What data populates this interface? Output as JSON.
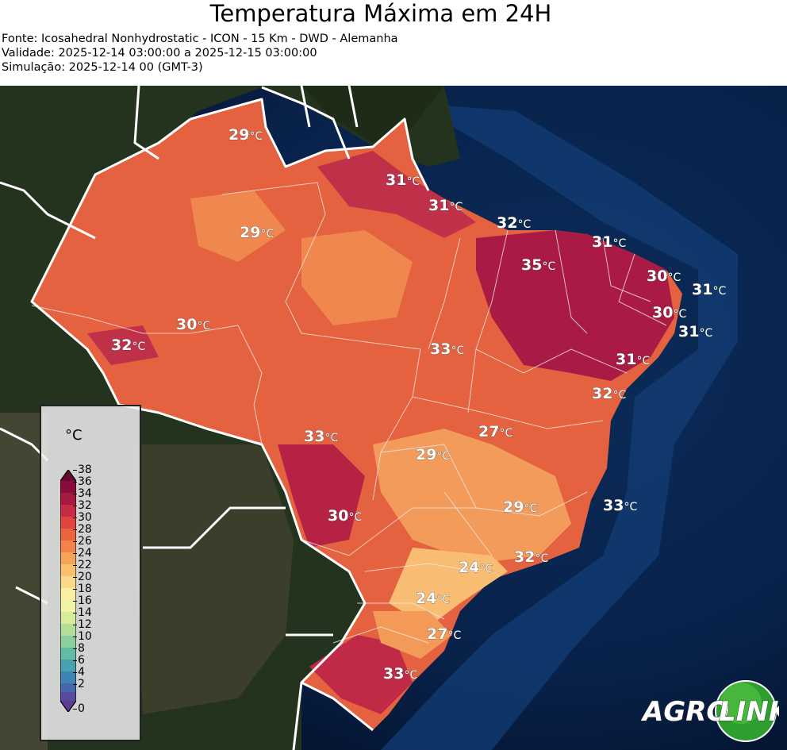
{
  "header": {
    "title": "Temperatura Máxima em 24H",
    "source": "Fonte: Icosahedral Nonhydrostatic - ICON - 15 Km - DWD - Alemanha",
    "validity": "Validade: 2025-12-14 03:00:00 a 2025-12-15 03:00:00",
    "simulation": "Simulação: 2025-12-14 00 (GMT-3)"
  },
  "legend": {
    "unit": "°C",
    "ticks": [
      "38",
      "36",
      "34",
      "32",
      "30",
      "28",
      "26",
      "24",
      "22",
      "20",
      "18",
      "16",
      "14",
      "12",
      "10",
      "8",
      "6",
      "4",
      "2",
      "0"
    ]
  },
  "labels": [
    {
      "value": "29",
      "unit": "°C"
    },
    {
      "value": "31",
      "unit": "°C"
    },
    {
      "value": "31",
      "unit": "°C"
    },
    {
      "value": "32",
      "unit": "°C"
    },
    {
      "value": "29",
      "unit": "°C"
    },
    {
      "value": "35",
      "unit": "°C"
    },
    {
      "value": "31",
      "unit": "°C"
    },
    {
      "value": "30",
      "unit": "°C"
    },
    {
      "value": "31",
      "unit": "°C"
    },
    {
      "value": "30",
      "unit": "°C"
    },
    {
      "value": "31",
      "unit": "°C"
    },
    {
      "value": "30",
      "unit": "°C"
    },
    {
      "value": "32",
      "unit": "°C"
    },
    {
      "value": "33",
      "unit": "°C"
    },
    {
      "value": "31",
      "unit": "°C"
    },
    {
      "value": "32",
      "unit": "°C"
    },
    {
      "value": "33",
      "unit": "°C"
    },
    {
      "value": "27",
      "unit": "°C"
    },
    {
      "value": "29",
      "unit": "°C"
    },
    {
      "value": "29",
      "unit": "°C"
    },
    {
      "value": "33",
      "unit": "°C"
    },
    {
      "value": "30",
      "unit": "°C"
    },
    {
      "value": "32",
      "unit": "°C"
    },
    {
      "value": "24",
      "unit": "°C"
    },
    {
      "value": "24",
      "unit": "°C"
    },
    {
      "value": "27",
      "unit": "°C"
    },
    {
      "value": "33",
      "unit": "°C"
    }
  ],
  "logo": {
    "text_a": "AGRO",
    "text_b": "LINK"
  },
  "colors": {
    "ocean": "#0a2a55",
    "land": "#2c3a24",
    "temp_hot": "#a0173f",
    "temp_warm": "#e0533a",
    "temp_mild": "#f28e52",
    "temp_cool": "#f8c07a",
    "logo_green": "#2e9e2e"
  }
}
